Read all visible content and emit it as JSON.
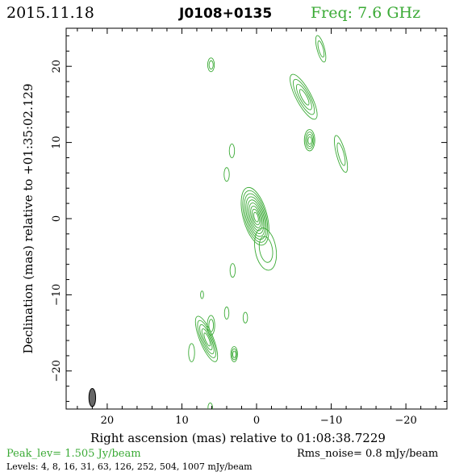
{
  "header": {
    "date": "2015.11.18",
    "source": "J0108+0135",
    "freq": "Freq: 7.6 GHz"
  },
  "colors": {
    "contour": "#3aaa35",
    "freq_text": "#3aaa35",
    "peak_text": "#3aaa35",
    "axes": "#000000",
    "beam_fill": "#666666"
  },
  "chart_data": {
    "type": "contour",
    "xlabel": "Right ascension (mas) relative to 01:08:38.7229",
    "ylabel": "Declination (mas) relative to +01:35:02.129",
    "xlim": [
      25.5,
      -25.5
    ],
    "ylim": [
      -25,
      25
    ],
    "xticks": [
      20,
      10,
      0,
      -10,
      -20
    ],
    "xtick_labels": [
      "20",
      "10",
      "0",
      "−10",
      "−20"
    ],
    "yticks": [
      20,
      10,
      0,
      -10,
      -20
    ],
    "ytick_labels": [
      "20",
      "10",
      "0",
      "−10",
      "−20"
    ],
    "levels_mJy": [
      4,
      8,
      16,
      31,
      63,
      126,
      252,
      504,
      1007
    ],
    "peak_Jy_per_beam": 1.505,
    "rms_noise_mJy": 0.8,
    "beam": {
      "x": 22.0,
      "y": -23.5,
      "major_mas": 2.4,
      "minor_mas": 0.9
    },
    "components": [
      {
        "name": "core",
        "x": 0.2,
        "y": 0.3,
        "rx": 1.6,
        "ry": 3.9,
        "angle": -15,
        "rings": 9
      },
      {
        "name": "core-ext-south",
        "x": -1.2,
        "y": -4.0,
        "rx": 1.4,
        "ry": 2.8,
        "angle": -10,
        "rings": 2
      },
      {
        "name": "jet-ne-1",
        "x": -6.3,
        "y": 16.0,
        "rx": 1.0,
        "ry": 3.3,
        "angle": -28,
        "rings": 4
      },
      {
        "name": "jet-ne-2",
        "x": -7.1,
        "y": 10.3,
        "rx": 0.7,
        "ry": 1.4,
        "angle": 0,
        "rings": 4
      },
      {
        "name": "jet-ne-3",
        "x": -11.3,
        "y": 8.5,
        "rx": 0.6,
        "ry": 2.5,
        "angle": -15,
        "rings": 2
      },
      {
        "name": "jet-ne-4",
        "x": -8.6,
        "y": 22.3,
        "rx": 0.5,
        "ry": 1.8,
        "angle": -15,
        "rings": 2
      },
      {
        "name": "knot-n",
        "x": 6.1,
        "y": 20.2,
        "rx": 0.45,
        "ry": 0.9,
        "angle": 0,
        "rings": 2
      },
      {
        "name": "knot-mid-1",
        "x": 3.3,
        "y": 8.9,
        "rx": 0.35,
        "ry": 0.9,
        "angle": 0,
        "rings": 1
      },
      {
        "name": "knot-mid-2",
        "x": 4.0,
        "y": 5.8,
        "rx": 0.35,
        "ry": 0.9,
        "angle": 0,
        "rings": 1
      },
      {
        "name": "knot-mid-3",
        "x": 3.2,
        "y": -6.8,
        "rx": 0.35,
        "ry": 0.9,
        "angle": 0,
        "rings": 1
      },
      {
        "name": "jet-sw-1",
        "x": 6.7,
        "y": -15.8,
        "rx": 0.9,
        "ry": 3.2,
        "angle": -22,
        "rings": 5
      },
      {
        "name": "jet-sw-2",
        "x": 6.1,
        "y": -14.0,
        "rx": 0.5,
        "ry": 1.3,
        "angle": 0,
        "rings": 2
      },
      {
        "name": "jet-sw-3",
        "x": 3.0,
        "y": -17.8,
        "rx": 0.45,
        "ry": 1.0,
        "angle": 0,
        "rings": 3
      },
      {
        "name": "knot-s-1",
        "x": 4.0,
        "y": -12.4,
        "rx": 0.3,
        "ry": 0.8,
        "angle": 0,
        "rings": 1
      },
      {
        "name": "knot-s-2",
        "x": 1.5,
        "y": -13.0,
        "rx": 0.3,
        "ry": 0.7,
        "angle": 0,
        "rings": 1
      },
      {
        "name": "knot-s-3",
        "x": 7.3,
        "y": -10.0,
        "rx": 0.2,
        "ry": 0.5,
        "angle": 0,
        "rings": 1
      },
      {
        "name": "knot-s-4",
        "x": 8.7,
        "y": -17.6,
        "rx": 0.4,
        "ry": 1.2,
        "angle": 0,
        "rings": 1
      },
      {
        "name": "knot-bottom",
        "x": 6.2,
        "y": -24.8,
        "rx": 0.3,
        "ry": 0.6,
        "angle": 0,
        "rings": 1
      }
    ]
  },
  "footer": {
    "peak": "Peak_lev=  1.505 Jy/beam",
    "rms": "Rms_noise=  0.8 mJy/beam",
    "levels": "Levels:   4,   8,   16,   31,   63,  126,  252,  504,  1007  mJy/beam"
  }
}
